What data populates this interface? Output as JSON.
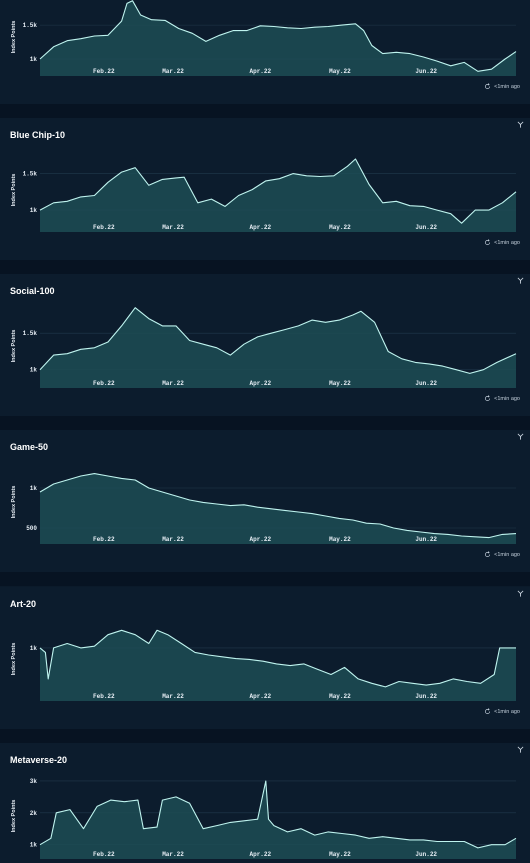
{
  "colors": {
    "line": "#bff4ef",
    "fill": "#1d4c55",
    "grid": "#21384d"
  },
  "icons": {
    "expand": "expand-arrows-icon",
    "refresh": "refresh-icon"
  },
  "chart_data": [
    {
      "type": "area",
      "title": "",
      "ylabel": "Index Points",
      "updated": "<1min ago",
      "x_ticks": [
        "Feb.22",
        "Mar.22",
        "Apr.22",
        "May.22",
        "Jun.22"
      ],
      "y_ticks": [
        {
          "v": 1000,
          "label": "1k"
        },
        {
          "v": 1500,
          "label": "1.5k"
        }
      ],
      "ylim": [
        750,
        1900
      ],
      "x": [
        "2022-01-10",
        "2022-01-15",
        "2022-01-20",
        "2022-01-25",
        "2022-01-30",
        "2022-02-04",
        "2022-02-09",
        "2022-02-11",
        "2022-02-13",
        "2022-02-16",
        "2022-02-20",
        "2022-02-25",
        "2022-03-02",
        "2022-03-07",
        "2022-03-12",
        "2022-03-17",
        "2022-03-22",
        "2022-03-27",
        "2022-04-01",
        "2022-04-06",
        "2022-04-11",
        "2022-04-16",
        "2022-04-21",
        "2022-04-26",
        "2022-05-01",
        "2022-05-06",
        "2022-05-09",
        "2022-05-12",
        "2022-05-16",
        "2022-05-21",
        "2022-05-26",
        "2022-05-31",
        "2022-06-05",
        "2022-06-10",
        "2022-06-15",
        "2022-06-20",
        "2022-06-25",
        "2022-06-30",
        "2022-07-04"
      ],
      "values": [
        1000,
        1180,
        1270,
        1300,
        1340,
        1350,
        1560,
        1820,
        1860,
        1650,
        1580,
        1570,
        1450,
        1380,
        1260,
        1350,
        1420,
        1420,
        1490,
        1480,
        1460,
        1450,
        1470,
        1480,
        1500,
        1520,
        1420,
        1200,
        1080,
        1100,
        1080,
        1030,
        970,
        900,
        950,
        820,
        850,
        1000,
        1110
      ]
    },
    {
      "type": "area",
      "title": "Blue Chip-10",
      "ylabel": "Index Points",
      "updated": "<1min ago",
      "x_ticks": [
        "Feb.22",
        "Mar.22",
        "Apr.22",
        "May.22",
        "Jun.22"
      ],
      "y_ticks": [
        {
          "v": 1000,
          "label": "1k"
        },
        {
          "v": 1500,
          "label": "1.5k"
        }
      ],
      "ylim": [
        700,
        1850
      ],
      "x": [
        "2022-01-10",
        "2022-01-15",
        "2022-01-20",
        "2022-01-25",
        "2022-01-30",
        "2022-02-04",
        "2022-02-09",
        "2022-02-14",
        "2022-02-19",
        "2022-02-24",
        "2022-03-01",
        "2022-03-04",
        "2022-03-09",
        "2022-03-14",
        "2022-03-19",
        "2022-03-24",
        "2022-03-29",
        "2022-04-03",
        "2022-04-08",
        "2022-04-13",
        "2022-04-18",
        "2022-04-23",
        "2022-04-28",
        "2022-05-03",
        "2022-05-06",
        "2022-05-11",
        "2022-05-16",
        "2022-05-21",
        "2022-05-26",
        "2022-05-31",
        "2022-06-05",
        "2022-06-10",
        "2022-06-14",
        "2022-06-19",
        "2022-06-24",
        "2022-06-29",
        "2022-07-04"
      ],
      "values": [
        1000,
        1100,
        1120,
        1180,
        1200,
        1380,
        1520,
        1580,
        1340,
        1420,
        1440,
        1450,
        1100,
        1150,
        1050,
        1200,
        1280,
        1400,
        1430,
        1500,
        1470,
        1460,
        1470,
        1600,
        1700,
        1350,
        1100,
        1120,
        1060,
        1050,
        1000,
        950,
        820,
        1000,
        1000,
        1100,
        1250
      ]
    },
    {
      "type": "area",
      "title": "Social-100",
      "ylabel": "Index Points",
      "updated": "<1min ago",
      "x_ticks": [
        "Feb.22",
        "Mar.22",
        "Apr.22",
        "May.22",
        "Jun.22"
      ],
      "y_ticks": [
        {
          "v": 1000,
          "label": "1k"
        },
        {
          "v": 1500,
          "label": "1.5k"
        }
      ],
      "ylim": [
        750,
        1900
      ],
      "x": [
        "2022-01-10",
        "2022-01-15",
        "2022-01-20",
        "2022-01-25",
        "2022-01-30",
        "2022-02-04",
        "2022-02-09",
        "2022-02-14",
        "2022-02-19",
        "2022-02-24",
        "2022-03-01",
        "2022-03-06",
        "2022-03-11",
        "2022-03-16",
        "2022-03-21",
        "2022-03-26",
        "2022-03-31",
        "2022-04-05",
        "2022-04-10",
        "2022-04-15",
        "2022-04-20",
        "2022-04-25",
        "2022-04-30",
        "2022-05-05",
        "2022-05-08",
        "2022-05-13",
        "2022-05-18",
        "2022-05-23",
        "2022-05-28",
        "2022-06-02",
        "2022-06-07",
        "2022-06-12",
        "2022-06-17",
        "2022-06-22",
        "2022-06-27",
        "2022-07-04"
      ],
      "values": [
        1000,
        1200,
        1220,
        1280,
        1300,
        1380,
        1600,
        1850,
        1700,
        1600,
        1600,
        1400,
        1350,
        1300,
        1200,
        1350,
        1450,
        1500,
        1550,
        1600,
        1680,
        1650,
        1680,
        1750,
        1800,
        1650,
        1250,
        1150,
        1100,
        1080,
        1050,
        1000,
        950,
        1000,
        1100,
        1220
      ]
    },
    {
      "type": "area",
      "title": "Game-50",
      "ylabel": "Index Points",
      "updated": "<1min ago",
      "x_ticks": [
        "Feb.22",
        "Mar.22",
        "Apr.22",
        "May.22",
        "Jun.22"
      ],
      "y_ticks": [
        {
          "v": 500,
          "label": "500"
        },
        {
          "v": 1000,
          "label": "1k"
        }
      ],
      "ylim": [
        300,
        1350
      ],
      "x": [
        "2022-01-10",
        "2022-01-15",
        "2022-01-20",
        "2022-01-25",
        "2022-01-30",
        "2022-02-04",
        "2022-02-09",
        "2022-02-14",
        "2022-02-19",
        "2022-02-24",
        "2022-03-01",
        "2022-03-06",
        "2022-03-11",
        "2022-03-16",
        "2022-03-21",
        "2022-03-26",
        "2022-03-31",
        "2022-04-05",
        "2022-04-10",
        "2022-04-15",
        "2022-04-20",
        "2022-04-25",
        "2022-04-30",
        "2022-05-05",
        "2022-05-10",
        "2022-05-15",
        "2022-05-20",
        "2022-05-25",
        "2022-05-30",
        "2022-06-04",
        "2022-06-09",
        "2022-06-14",
        "2022-06-19",
        "2022-06-24",
        "2022-06-29",
        "2022-07-04"
      ],
      "values": [
        950,
        1050,
        1100,
        1150,
        1180,
        1150,
        1120,
        1100,
        1000,
        950,
        900,
        850,
        820,
        800,
        780,
        790,
        760,
        740,
        720,
        700,
        680,
        650,
        620,
        600,
        560,
        550,
        500,
        470,
        450,
        430,
        420,
        400,
        390,
        380,
        420,
        430
      ]
    },
    {
      "type": "area",
      "title": "Art-20",
      "ylabel": "Index Points",
      "updated": "<1min ago",
      "x_ticks": [
        "Feb.22",
        "Mar.22",
        "Apr.22",
        "May.22",
        "Jun.22"
      ],
      "y_ticks": [
        {
          "v": 1000,
          "label": "1k"
        }
      ],
      "ylim": [
        400,
        1350
      ],
      "x": [
        "2022-01-10",
        "2022-01-12",
        "2022-01-13",
        "2022-01-15",
        "2022-01-20",
        "2022-01-25",
        "2022-01-30",
        "2022-02-04",
        "2022-02-09",
        "2022-02-14",
        "2022-02-19",
        "2022-02-22",
        "2022-02-26",
        "2022-03-03",
        "2022-03-08",
        "2022-03-13",
        "2022-03-18",
        "2022-03-23",
        "2022-03-28",
        "2022-04-02",
        "2022-04-07",
        "2022-04-12",
        "2022-04-17",
        "2022-04-22",
        "2022-04-27",
        "2022-05-02",
        "2022-05-07",
        "2022-05-12",
        "2022-05-17",
        "2022-05-22",
        "2022-05-27",
        "2022-06-01",
        "2022-06-06",
        "2022-06-11",
        "2022-06-16",
        "2022-06-21",
        "2022-06-26",
        "2022-06-28",
        "2022-07-04"
      ],
      "values": [
        1000,
        950,
        650,
        1000,
        1050,
        1000,
        1020,
        1150,
        1200,
        1150,
        1050,
        1200,
        1150,
        1050,
        950,
        920,
        900,
        880,
        870,
        850,
        820,
        800,
        820,
        760,
        700,
        780,
        650,
        600,
        560,
        620,
        600,
        580,
        600,
        650,
        620,
        600,
        700,
        1000,
        1000
      ]
    },
    {
      "type": "area",
      "title": "Metaverse-20",
      "ylabel": "Index Points",
      "updated": "",
      "x_ticks": [
        "Feb.22",
        "Mar.22",
        "Apr.22",
        "May.22",
        "Jun.22"
      ],
      "y_ticks": [
        {
          "v": 1000,
          "label": "1k"
        },
        {
          "v": 2000,
          "label": "2k"
        },
        {
          "v": 3000,
          "label": "3k"
        }
      ],
      "ylim": [
        550,
        3250
      ],
      "x": [
        "2022-01-10",
        "2022-01-14",
        "2022-01-16",
        "2022-01-21",
        "2022-01-26",
        "2022-01-31",
        "2022-02-05",
        "2022-02-10",
        "2022-02-15",
        "2022-02-17",
        "2022-02-22",
        "2022-02-24",
        "2022-03-01",
        "2022-03-06",
        "2022-03-11",
        "2022-03-16",
        "2022-03-21",
        "2022-03-26",
        "2022-03-31",
        "2022-04-03",
        "2022-04-04",
        "2022-04-06",
        "2022-04-11",
        "2022-04-16",
        "2022-04-21",
        "2022-04-26",
        "2022-05-01",
        "2022-05-06",
        "2022-05-11",
        "2022-05-16",
        "2022-05-21",
        "2022-05-26",
        "2022-05-31",
        "2022-06-05",
        "2022-06-10",
        "2022-06-15",
        "2022-06-20",
        "2022-06-25",
        "2022-06-30",
        "2022-07-04"
      ],
      "values": [
        1000,
        1200,
        2000,
        2100,
        1500,
        2200,
        2400,
        2350,
        2400,
        1500,
        1550,
        2400,
        2500,
        2300,
        1500,
        1600,
        1700,
        1750,
        1800,
        3000,
        1800,
        1600,
        1400,
        1500,
        1300,
        1400,
        1350,
        1300,
        1200,
        1250,
        1200,
        1150,
        1150,
        1100,
        1100,
        1100,
        900,
        1000,
        1000,
        1200
      ]
    }
  ]
}
